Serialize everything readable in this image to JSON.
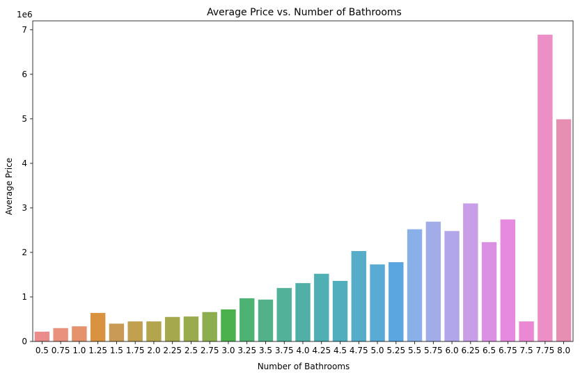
{
  "chart_data": {
    "type": "bar",
    "title": "Average Price vs. Number of Bathrooms",
    "xlabel": "Number of Bathrooms",
    "ylabel": "Average Price",
    "y_offset_label": "1e6",
    "ylim": [
      0,
      7.2
    ],
    "yticks": [
      "0",
      "1",
      "2",
      "3",
      "4",
      "5",
      "6",
      "7"
    ],
    "grid": false,
    "categories": [
      "0.5",
      "0.75",
      "1.0",
      "1.25",
      "1.5",
      "1.75",
      "2.0",
      "2.25",
      "2.5",
      "2.75",
      "3.0",
      "3.25",
      "3.5",
      "3.75",
      "4.0",
      "4.25",
      "4.5",
      "4.75",
      "5.0",
      "5.25",
      "5.5",
      "5.75",
      "6.0",
      "6.25",
      "6.5",
      "6.75",
      "7.5",
      "7.75",
      "8.0"
    ],
    "values": [
      0.22,
      0.3,
      0.34,
      0.64,
      0.4,
      0.45,
      0.45,
      0.55,
      0.56,
      0.66,
      0.72,
      0.97,
      0.94,
      1.2,
      1.31,
      1.52,
      1.36,
      2.03,
      1.73,
      1.78,
      2.52,
      2.69,
      2.48,
      3.1,
      2.23,
      2.74,
      0.45,
      6.89,
      4.99
    ],
    "colors": [
      "#ea8c8c",
      "#e9917d",
      "#e4936d",
      "#d9923f",
      "#c99a55",
      "#c1a04f",
      "#b3a54d",
      "#a5a84d",
      "#9aab4e",
      "#8cae4e",
      "#4bb14d",
      "#4fb275",
      "#53b189",
      "#52b199",
      "#50b0a8",
      "#4fafb2",
      "#51aebd",
      "#55adc9",
      "#5aaad6",
      "#5ba5e1",
      "#8ab0ea",
      "#a1ace9",
      "#b2a6ea",
      "#c99ee8",
      "#da91e4",
      "#e68ae0",
      "#eb88d3",
      "#ec8fc7",
      "#e78fb3"
    ]
  }
}
